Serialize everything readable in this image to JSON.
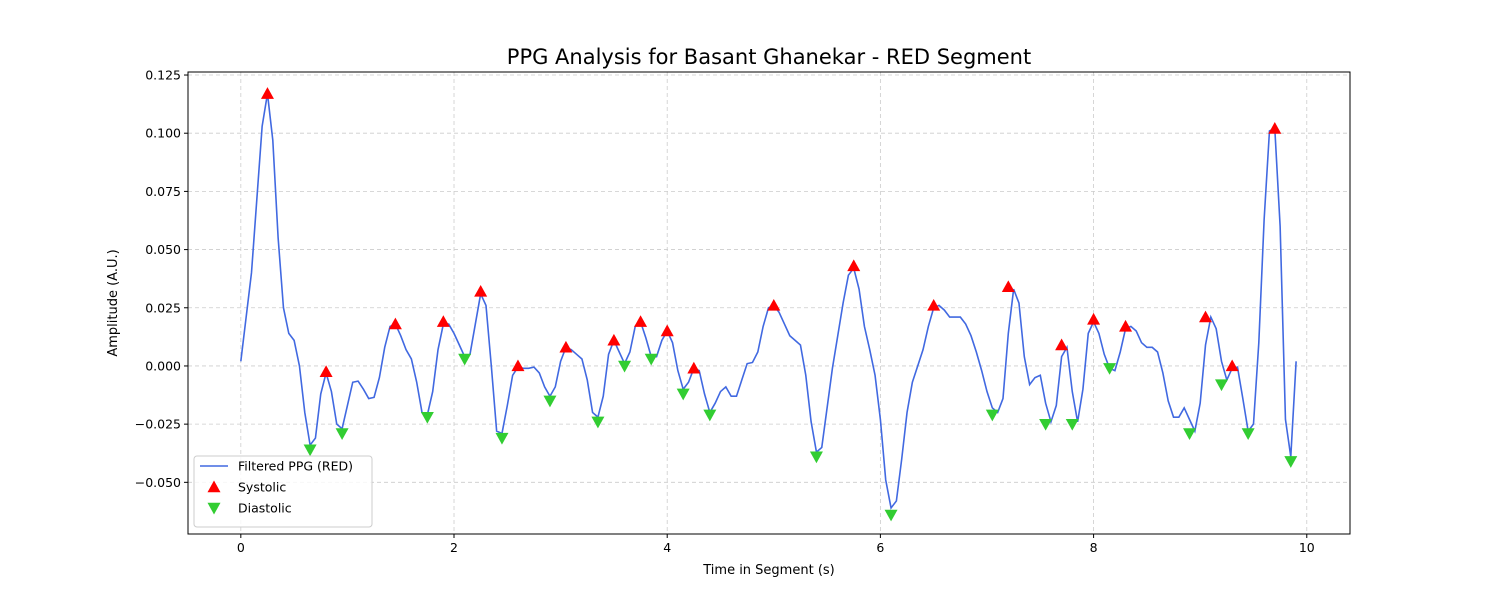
{
  "chart_data": {
    "type": "line",
    "title": "PPG Analysis for Basant Ghanekar - RED Segment",
    "x_label": "Time in Segment (s)",
    "y_label": "Amplitude (A.U.)",
    "xlim": [
      -0.4955,
      10.4055
    ],
    "ylim": [
      -0.0722,
      0.1263
    ],
    "xticks": [
      0,
      2,
      4,
      6,
      8,
      10
    ],
    "yticks": [
      {
        "value": -0.05,
        "label": "−0.050"
      },
      {
        "value": -0.025,
        "label": "−0.025"
      },
      {
        "value": 0,
        "label": "0.000"
      },
      {
        "value": 0.025,
        "label": "0.025"
      },
      {
        "value": 0.05,
        "label": "0.050"
      },
      {
        "value": 0.075,
        "label": "0.075"
      },
      {
        "value": 0.1,
        "label": "0.100"
      },
      {
        "value": 0.125,
        "label": "0.125"
      }
    ],
    "grid": true,
    "legend": "lower left",
    "series": [
      {
        "name": "Filtered PPG (RED)",
        "type": "line",
        "color": "#4169e1",
        "x": [
          0,
          0.1,
          0.2,
          0.25,
          0.3,
          0.35,
          0.4,
          0.45,
          0.5,
          0.55,
          0.6,
          0.65,
          0.7,
          0.75,
          0.8,
          0.85,
          0.9,
          0.95,
          1.0,
          1.05,
          1.1,
          1.15,
          1.2,
          1.25,
          1.3,
          1.35,
          1.4,
          1.45,
          1.5,
          1.55,
          1.6,
          1.65,
          1.7,
          1.75,
          1.8,
          1.85,
          1.9,
          1.95,
          2.0,
          2.05,
          2.1,
          2.15,
          2.2,
          2.25,
          2.3,
          2.35,
          2.4,
          2.45,
          2.5,
          2.55,
          2.6,
          2.65,
          2.7,
          2.75,
          2.8,
          2.85,
          2.9,
          2.95,
          3.0,
          3.05,
          3.1,
          3.15,
          3.2,
          3.25,
          3.3,
          3.35,
          3.4,
          3.45,
          3.5,
          3.55,
          3.6,
          3.65,
          3.7,
          3.75,
          3.8,
          3.85,
          3.9,
          3.95,
          4.0,
          4.05,
          4.1,
          4.15,
          4.2,
          4.25,
          4.3,
          4.35,
          4.4,
          4.45,
          4.5,
          4.55,
          4.6,
          4.65,
          4.7,
          4.75,
          4.8,
          4.85,
          4.9,
          4.95,
          5.0,
          5.05,
          5.1,
          5.15,
          5.2,
          5.25,
          5.3,
          5.35,
          5.4,
          5.45,
          5.5,
          5.55,
          5.6,
          5.65,
          5.7,
          5.75,
          5.8,
          5.85,
          5.9,
          5.95,
          6.0,
          6.05,
          6.1,
          6.15,
          6.2,
          6.25,
          6.3,
          6.35,
          6.4,
          6.45,
          6.5,
          6.55,
          6.6,
          6.65,
          6.7,
          6.75,
          6.8,
          6.85,
          6.9,
          6.95,
          7.0,
          7.05,
          7.1,
          7.15,
          7.2,
          7.25,
          7.3,
          7.35,
          7.4,
          7.45,
          7.5,
          7.55,
          7.6,
          7.65,
          7.7,
          7.75,
          7.8,
          7.85,
          7.9,
          7.95,
          8.0,
          8.05,
          8.1,
          8.15,
          8.2,
          8.25,
          8.3,
          8.35,
          8.4,
          8.45,
          8.5,
          8.55,
          8.6,
          8.65,
          8.7,
          8.75,
          8.8,
          8.85,
          8.9,
          8.95,
          9.0,
          9.05,
          9.1,
          9.15,
          9.2,
          9.25,
          9.3,
          9.35,
          9.4,
          9.45,
          9.5,
          9.55,
          9.6,
          9.65,
          9.7,
          9.75,
          9.8,
          9.85,
          9.9
        ],
        "values": [
          0.002,
          0.04,
          0.103,
          0.117,
          0.097,
          0.055,
          0.025,
          0.014,
          0.011,
          0.0,
          -0.02,
          -0.034,
          -0.031,
          -0.012,
          -0.003,
          -0.011,
          -0.025,
          -0.027,
          -0.017,
          -0.007,
          -0.0065,
          -0.01,
          -0.014,
          -0.0135,
          -0.005,
          0.008,
          0.017,
          0.018,
          0.013,
          0.007,
          0.003,
          -0.007,
          -0.02,
          -0.021,
          -0.011,
          0.007,
          0.018,
          0.018,
          0.014,
          0.009,
          0.004,
          0.005,
          0.018,
          0.031,
          0.026,
          0.0,
          -0.028,
          -0.029,
          -0.017,
          -0.004,
          -0.0005,
          -0.001,
          -0.001,
          -0.0005,
          -0.003,
          -0.009,
          -0.013,
          -0.009,
          0.002,
          0.008,
          0.007,
          0.005,
          0.003,
          -0.006,
          -0.02,
          -0.022,
          -0.013,
          0.005,
          0.011,
          0.006,
          0.001,
          0.006,
          0.017,
          0.019,
          0.012,
          0.004,
          0.004,
          0.011,
          0.015,
          0.01,
          -0.002,
          -0.01,
          -0.007,
          -0.001,
          -0.002,
          -0.012,
          -0.02,
          -0.016,
          -0.011,
          -0.009,
          -0.013,
          -0.013,
          -0.006,
          0.001,
          0.0015,
          0.006,
          0.017,
          0.025,
          0.026,
          0.023,
          0.018,
          0.013,
          0.011,
          0.009,
          -0.004,
          -0.024,
          -0.037,
          -0.035,
          -0.018,
          -0.001,
          0.013,
          0.027,
          0.039,
          0.042,
          0.033,
          0.017,
          0.007,
          -0.004,
          -0.023,
          -0.049,
          -0.061,
          -0.058,
          -0.04,
          -0.02,
          -0.007,
          0.0,
          0.007,
          0.017,
          0.025,
          0.026,
          0.024,
          0.021,
          0.021,
          0.021,
          0.018,
          0.013,
          0.006,
          -0.002,
          -0.011,
          -0.018,
          -0.02,
          -0.014,
          0.014,
          0.033,
          0.027,
          0.004,
          -0.008,
          -0.005,
          -0.004,
          -0.016,
          -0.024,
          -0.017,
          0.004,
          0.008,
          -0.011,
          -0.024,
          -0.01,
          0.014,
          0.019,
          0.014,
          0.005,
          -0.001,
          -0.002,
          0.006,
          0.016,
          0.017,
          0.015,
          0.01,
          0.008,
          0.008,
          0.006,
          -0.003,
          -0.015,
          -0.022,
          -0.022,
          -0.018,
          -0.023,
          -0.028,
          -0.016,
          0.009,
          0.021,
          0.016,
          0.002,
          -0.006,
          -0.001,
          -0.0005,
          -0.014,
          -0.028,
          -0.025,
          0.01,
          0.063,
          0.101,
          0.102,
          0.06,
          -0.023,
          -0.039,
          0.002
        ]
      },
      {
        "name": "Systolic",
        "type": "scatter",
        "marker": "^",
        "color": "#ff0000",
        "x": [
          0.25,
          0.8,
          1.45,
          1.9,
          2.25,
          2.6,
          3.05,
          3.5,
          3.75,
          4.0,
          4.25,
          5.0,
          5.75,
          6.5,
          7.2,
          7.7,
          8.0,
          8.3,
          9.05,
          9.3,
          9.7
        ],
        "values": [
          0.117,
          -0.0025,
          0.018,
          0.019,
          0.032,
          0.0,
          0.008,
          0.011,
          0.019,
          0.015,
          -0.001,
          0.026,
          0.043,
          0.026,
          0.034,
          0.009,
          0.02,
          0.017,
          0.021,
          0.0,
          0.102
        ]
      },
      {
        "name": "Diastolic",
        "type": "scatter",
        "marker": "v",
        "color": "#32cd32",
        "x": [
          0.65,
          0.95,
          1.75,
          2.1,
          2.45,
          2.9,
          3.35,
          3.6,
          3.85,
          4.15,
          4.4,
          5.4,
          6.1,
          7.05,
          7.55,
          7.8,
          8.15,
          8.9,
          9.2,
          9.45,
          9.85
        ],
        "values": [
          -0.036,
          -0.029,
          -0.022,
          0.003,
          -0.031,
          -0.015,
          -0.024,
          0.0,
          0.003,
          -0.012,
          -0.021,
          -0.039,
          -0.064,
          -0.021,
          -0.025,
          -0.025,
          -0.001,
          -0.029,
          -0.008,
          -0.029,
          -0.041
        ]
      }
    ]
  }
}
